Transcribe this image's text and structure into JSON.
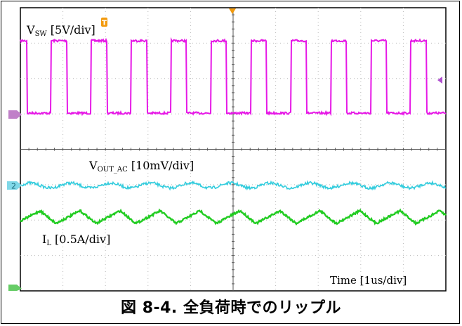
{
  "figure": {
    "caption": "図 8-4. 全負荷時でのリップル"
  },
  "scope": {
    "horizontal_divisions": 10,
    "vertical_divisions": 8,
    "colors": {
      "background": "#ffffff",
      "grid": "#b8b8b8",
      "vsw": "#e619e6",
      "vout": "#33ccdd",
      "il": "#22cc22",
      "marker_trigger": "#f29a0e",
      "marker_channel": "#b050d0"
    },
    "labels": {
      "vsw_main": "V",
      "vsw_sub": "SW",
      "vsw_scale": " [5V/div]",
      "vout_main": "V",
      "vout_sub": "OUT_AC",
      "vout_scale": " [10mV/div]",
      "il_main": "I",
      "il_sub": "L",
      "il_scale": " [0.5A/div]",
      "time": "Time [1us/div]",
      "ch2_marker": "2"
    },
    "icons": [
      "trigger-marker-icon",
      "channel-marker-icon"
    ]
  },
  "chart_data": {
    "type": "line",
    "title": "",
    "xlabel": "Time [1us/div]",
    "x_unit": "us",
    "x_range": [
      0,
      10
    ],
    "series": [
      {
        "name": "VSW [5V/div]",
        "kind": "square",
        "period_us": 0.94,
        "duty": 0.4,
        "low_div": 0,
        "high_div": 2
      },
      {
        "name": "VOUT_AC [10mV/div]",
        "kind": "ripple",
        "period_us": 0.94,
        "peak_to_peak_mV": 2
      },
      {
        "name": "IL [0.5A/div]",
        "kind": "triangle",
        "period_us": 0.94,
        "peak_to_peak_A": 0.1
      }
    ]
  }
}
